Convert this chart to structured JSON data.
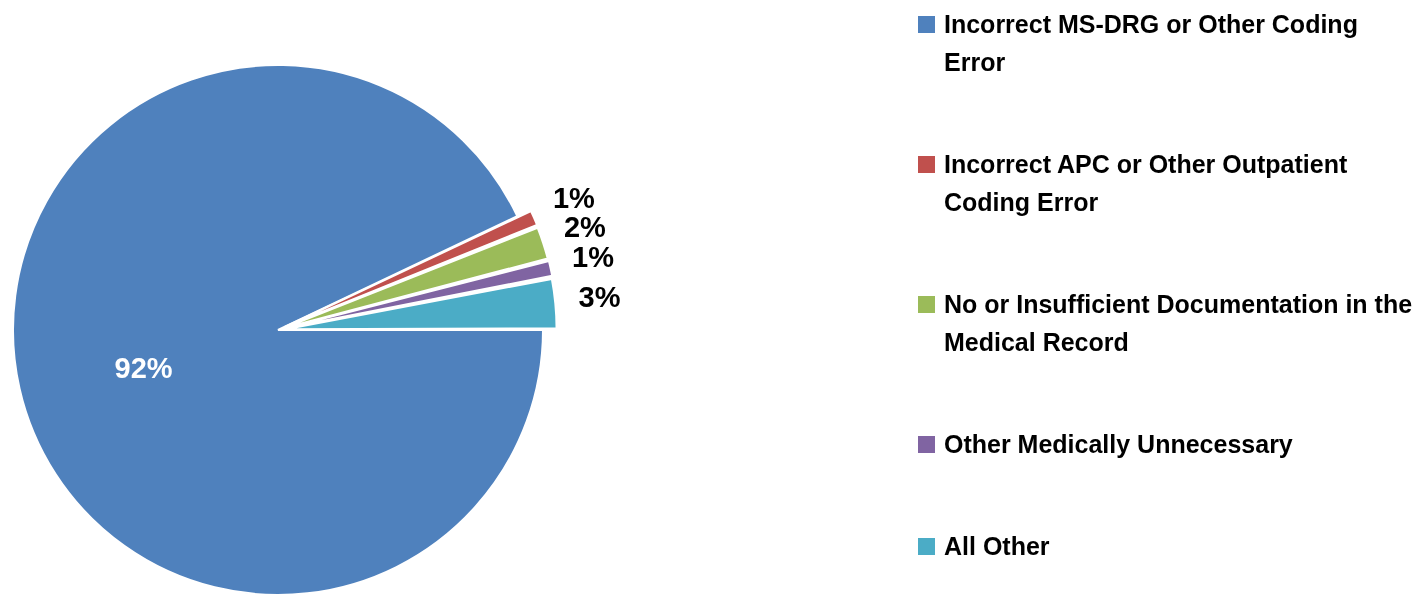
{
  "chart_data": {
    "type": "pie",
    "categories": [
      "Incorrect MS-DRG or Other Coding Error",
      "Incorrect APC or Other Outpatient Coding Error",
      "No or Insufficient Documentation in the Medical Record",
      "Other Medically Unnecessary",
      "All Other"
    ],
    "values": [
      92,
      1,
      2,
      1,
      3
    ],
    "colors": [
      "#4f81bd",
      "#c0504d",
      "#9bbb59",
      "#8064a2",
      "#4bacc6"
    ],
    "value_labels": [
      "92%",
      "1%",
      "2%",
      "1%",
      "3%"
    ],
    "legend": "right"
  }
}
